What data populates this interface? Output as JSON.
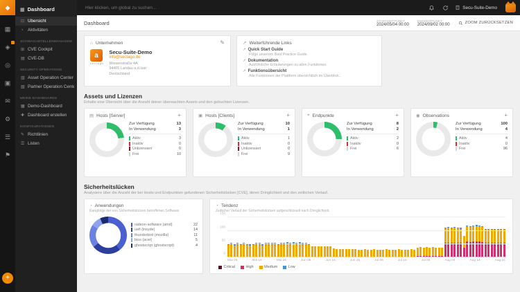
{
  "topbar": {
    "search_placeholder": "Hier klicken, um global zu suchen...",
    "tenant_label": "Secu-Suite-Demo"
  },
  "subheader": {
    "breadcrumb": "Dashboard",
    "start_label": "STARTZEITPUNKT",
    "start_value": "2024/05/04 00:00",
    "end_label": "ENDZEITPUNKT",
    "end_value": "2024/09/02 00:00",
    "zoom_reset_label": "ZOOM ZURÜCKSETZEN"
  },
  "sidebar": {
    "title": "Dashboard",
    "fab_glyph": "+",
    "rail_icons": [
      {
        "name": "dashboard-grid-icon",
        "glyph": "▦",
        "badge": false
      },
      {
        "name": "shield-icon",
        "glyph": "◈",
        "badge": true
      },
      {
        "name": "radar-icon",
        "glyph": "◎",
        "badge": false
      },
      {
        "name": "monitor-icon",
        "glyph": "▣",
        "badge": false
      },
      {
        "name": "mail-icon",
        "glyph": "✉",
        "badge": false
      },
      {
        "name": "settings-icon",
        "glyph": "⚙",
        "badge": false
      },
      {
        "name": "list-icon",
        "glyph": "☰",
        "badge": false
      },
      {
        "name": "flag-icon",
        "glyph": "⚑",
        "badge": false
      }
    ],
    "items_top": [
      {
        "name": "uebersicht",
        "icon_glyph": "⊡",
        "label": "Übersicht",
        "active": true
      },
      {
        "name": "aktivitaeten",
        "icon_glyph": "◔",
        "label": "Aktivitäten",
        "active": false
      }
    ],
    "groups": [
      {
        "heading": "SCHWACHSTELLENMANAGEMENT",
        "items": [
          {
            "name": "cve-cockpit",
            "icon_glyph": "⊞",
            "label": "CVE Cockpit"
          },
          {
            "name": "cve-db",
            "icon_glyph": "▤",
            "label": "CVE-DB"
          }
        ]
      },
      {
        "heading": "SECURITY OPERATIONS",
        "items": [
          {
            "name": "asset-operation-center",
            "icon_glyph": "▥",
            "label": "Asset Operation Center"
          },
          {
            "name": "partner-operation-center",
            "icon_glyph": "▧",
            "label": "Partner Operation Center"
          }
        ]
      },
      {
        "heading": "MEINE DASHBOARDS",
        "items": [
          {
            "name": "demo-dashboard",
            "icon_glyph": "▦",
            "label": "Demo-Dashboard"
          },
          {
            "name": "dashboard-erstellen",
            "icon_glyph": "✚",
            "label": "Dashboard erstellen"
          }
        ]
      },
      {
        "heading": "KONFIGURATIONEN",
        "items": [
          {
            "name": "richtlinien",
            "icon_glyph": "✎",
            "label": "Richtlinien"
          },
          {
            "name": "listen",
            "icon_glyph": "☰",
            "label": "Listen"
          }
        ]
      }
    ]
  },
  "company_card": {
    "header": "Unternehmen",
    "logo_letter": "a",
    "logo_caption": "sectago",
    "name": "Secu-Suite-Demo",
    "email": "info@sectago.de",
    "address_lines": [
      "Wiesenstraße 4A",
      "94405 Landau a.d.Isar",
      "Deutschland"
    ]
  },
  "links_card": {
    "header": "Weiterführende Links",
    "links": [
      {
        "label": "Quick Start Guide",
        "description": "Folge unserem Best Practice Guide."
      },
      {
        "label": "Dokumentation",
        "description": "Ausführliche Erläuterungen zu allen Funktionen."
      },
      {
        "label": "Funktionsübersicht",
        "description": "Alle Funktionen der Plattform übersichtlich im Überblick."
      }
    ]
  },
  "assets_section": {
    "title": "Assets und Lizenzen",
    "subtitle": "Erhalte eine Übersicht über die Anzahl deiner überwachten Assets und den gebuchten Lizenzen.",
    "cards": [
      {
        "title": "Hosts [Server]",
        "icon": "server-icon",
        "icon_glyph": "▤",
        "add_glyph": "+",
        "chart_index": 0,
        "stats": [
          {
            "label": "Zur Verfügung",
            "value": "13"
          },
          {
            "label": "In Verwendung",
            "value": "3"
          }
        ],
        "legend": [
          {
            "label": "Aktiv",
            "value": "3",
            "color": "#2ebd6b"
          },
          {
            "label": "Inaktiv",
            "value": "0",
            "color": "#e02b2b"
          },
          {
            "label": "Unlizensiert",
            "value": "0",
            "color": "#8f1030"
          },
          {
            "label": "Frei",
            "value": "10",
            "color": "#d5d5d5"
          }
        ]
      },
      {
        "title": "Hosts [Clients]",
        "icon": "clients-icon",
        "icon_glyph": "▣",
        "add_glyph": "+",
        "chart_index": 1,
        "stats": [
          {
            "label": "Zur Verfügung",
            "value": "10"
          },
          {
            "label": "In Verwendung",
            "value": "1"
          }
        ],
        "legend": [
          {
            "label": "Aktiv",
            "value": "1",
            "color": "#2ebd6b"
          },
          {
            "label": "Inaktiv",
            "value": "0",
            "color": "#e02b2b"
          },
          {
            "label": "Unlizensiert",
            "value": "0",
            "color": "#8f1030"
          },
          {
            "label": "Frei",
            "value": "9",
            "color": "#d5d5d5"
          }
        ]
      },
      {
        "title": "Endpunkte",
        "icon": "endpoint-icon",
        "icon_glyph": "⌖",
        "add_glyph": "+",
        "chart_index": 2,
        "stats": [
          {
            "label": "Zur Verfügung",
            "value": "8"
          },
          {
            "label": "In Verwendung",
            "value": "2"
          }
        ],
        "legend": [
          {
            "label": "Aktiv",
            "value": "2",
            "color": "#2ebd6b"
          },
          {
            "label": "Inaktiv",
            "value": "0",
            "color": "#e02b2b"
          },
          {
            "label": "Frei",
            "value": "6",
            "color": "#d5d5d5"
          }
        ]
      },
      {
        "title": "Observations",
        "icon": "observations-icon",
        "icon_glyph": "◉",
        "add_glyph": "+",
        "chart_index": 3,
        "stats": [
          {
            "label": "Zur Verfügung",
            "value": "100"
          },
          {
            "label": "In Verwendung",
            "value": "4"
          }
        ],
        "legend": [
          {
            "label": "Aktiv",
            "value": "4",
            "color": "#2ebd6b"
          },
          {
            "label": "Inaktiv",
            "value": "0",
            "color": "#e02b2b"
          },
          {
            "label": "Frei",
            "value": "96",
            "color": "#d5d5d5"
          }
        ]
      }
    ]
  },
  "vuln_section": {
    "title": "Sicherheitslücken",
    "subtitle": "Analysiere über die Anzahl der bei Hosts und Endpunkten gefundenen Sicherheitslücken [CVE], deren Dringlichkeit und den zeitlichen Verlauf.",
    "apps_card": {
      "title": "Anwendungen",
      "icon_glyph": "◔",
      "subtitle": "Rangfolge der von Sicherheitslücken betroffenen Software.",
      "chart_index": 4,
      "legend": [
        {
          "label": "radeon-software (amd)",
          "value": "22",
          "color": "#4a5fd0"
        },
        {
          "label": "uefi (insyde)",
          "value": "14",
          "color": "#2c3e9e"
        },
        {
          "label": "thunderbird (mozilla)",
          "value": "11",
          "color": "#6b82e0"
        },
        {
          "label": "bios (acer)",
          "value": "5",
          "color": "#8fa3ec"
        },
        {
          "label": "ghostscript (ghostscript)",
          "value": "4",
          "color": "#1e2a6e"
        }
      ]
    },
    "trend_card": {
      "title": "Tendenz",
      "icon_glyph": "◔",
      "subtitle": "Zeitlicher Verlauf der Sicherheitslücken aufgeschlüsselt nach Dringlichkeit.",
      "chart_index": 5
    }
  },
  "chart_data": [
    {
      "type": "pie",
      "title": "Hosts [Server] Lizenzen",
      "labels": [
        "In Verwendung",
        "Frei"
      ],
      "values": [
        3,
        10
      ],
      "colors": [
        "#2ebd6b",
        "#e9e9e9"
      ]
    },
    {
      "type": "pie",
      "title": "Hosts [Clients] Lizenzen",
      "labels": [
        "In Verwendung",
        "Frei"
      ],
      "values": [
        1,
        9
      ],
      "colors": [
        "#2ebd6b",
        "#e9e9e9"
      ]
    },
    {
      "type": "pie",
      "title": "Endpunkte Lizenzen",
      "labels": [
        "In Verwendung",
        "Frei"
      ],
      "values": [
        2,
        6
      ],
      "colors": [
        "#2ebd6b",
        "#e9e9e9"
      ]
    },
    {
      "type": "pie",
      "title": "Observations Lizenzen",
      "labels": [
        "In Verwendung",
        "Frei"
      ],
      "values": [
        4,
        96
      ],
      "colors": [
        "#2ebd6b",
        "#e9e9e9"
      ]
    },
    {
      "type": "pie",
      "title": "Anwendungen",
      "labels": [
        "radeon-software (amd)",
        "uefi (insyde)",
        "thunderbird (mozilla)",
        "bios (acer)",
        "ghostscript (ghostscript)"
      ],
      "values": [
        22,
        14,
        11,
        5,
        4
      ],
      "colors": [
        "#4a5fd0",
        "#2c3e9e",
        "#6b82e0",
        "#8fa3ec",
        "#1e2a6e"
      ]
    },
    {
      "type": "bar",
      "stacked": true,
      "title": "Tendenz",
      "ylim": [
        0,
        150
      ],
      "yticks": [
        0,
        50,
        100,
        150
      ],
      "xticklabels": [
        "Mai 06",
        "Mai 16",
        "Mai 26",
        "Jun 05",
        "Jun 15",
        "Jun 25",
        "Jul 05",
        "Jul 15",
        "Jul 25",
        "Aug 04",
        "Aug 14",
        "Aug 24"
      ],
      "series": [
        {
          "name": "Critical",
          "color": "#5a1030",
          "values": [
            0,
            0,
            0,
            0,
            0,
            0,
            0,
            0,
            0,
            0,
            0,
            0,
            0,
            0,
            0,
            0,
            0,
            0,
            0,
            0,
            0,
            0,
            0,
            0,
            0,
            0,
            0,
            0,
            0,
            0,
            0,
            0,
            0,
            0,
            0,
            0,
            0,
            0,
            0,
            0,
            0,
            0,
            0,
            0,
            0,
            0,
            0,
            0,
            0,
            0,
            0,
            0,
            0,
            0,
            0,
            0,
            0,
            0,
            0,
            0,
            0,
            2,
            2,
            2,
            2,
            2,
            2,
            2,
            2,
            2,
            3,
            3,
            3,
            3,
            3,
            3,
            2,
            3,
            3,
            3,
            3,
            3,
            3,
            3,
            3,
            3,
            3,
            3,
            3,
            3
          ]
        },
        {
          "name": "High",
          "color": "#d62d6e",
          "values": [
            2,
            2,
            2,
            2,
            2,
            2,
            2,
            2,
            2,
            2,
            2,
            2,
            2,
            2,
            2,
            2,
            2,
            2,
            2,
            2,
            2,
            2,
            2,
            2,
            2,
            2,
            2,
            2,
            2,
            2,
            2,
            2,
            2,
            2,
            2,
            2,
            2,
            2,
            2,
            2,
            2,
            3,
            3,
            3,
            3,
            3,
            3,
            3,
            3,
            3,
            3,
            3,
            3,
            3,
            3,
            3,
            3,
            3,
            3,
            3,
            3,
            5,
            5,
            5,
            5,
            5,
            5,
            5,
            5,
            5,
            52,
            53,
            52,
            53,
            52,
            51,
            35,
            56,
            55,
            56,
            57,
            56,
            55,
            52,
            51,
            52,
            53,
            52,
            51,
            52
          ]
        },
        {
          "name": "Medium",
          "color": "#f2a800",
          "values": [
            44,
            45,
            43,
            46,
            44,
            45,
            44,
            43,
            45,
            46,
            44,
            43,
            45,
            44,
            46,
            45,
            44,
            46,
            45,
            47,
            46,
            47,
            46,
            47,
            46,
            45,
            44,
            40,
            40,
            39,
            40,
            40,
            39,
            40,
            32,
            31,
            31,
            30,
            31,
            31,
            30,
            28,
            27,
            27,
            28,
            26,
            27,
            28,
            27,
            26,
            27,
            28,
            27,
            27,
            26,
            28,
            27,
            26,
            27,
            28,
            27,
            31,
            32,
            31,
            32,
            31,
            32,
            29,
            30,
            29,
            55,
            56,
            55,
            56,
            55,
            54,
            45,
            57,
            56,
            57,
            58,
            57,
            56,
            50,
            51,
            50,
            49,
            50,
            51,
            50
          ]
        },
        {
          "name": "Low",
          "color": "#4a90d2",
          "values": [
            7,
            8,
            7,
            6,
            7,
            8,
            7,
            7,
            6,
            7,
            8,
            7,
            7,
            8,
            6,
            7,
            7,
            8,
            7,
            8,
            8,
            9,
            8,
            9,
            8,
            8,
            7,
            0,
            0,
            0,
            0,
            0,
            0,
            0,
            0,
            0,
            0,
            0,
            0,
            0,
            0,
            0,
            0,
            0,
            0,
            0,
            0,
            0,
            0,
            0,
            0,
            0,
            0,
            0,
            0,
            0,
            0,
            0,
            0,
            0,
            0,
            0,
            0,
            0,
            0,
            0,
            0,
            0,
            0,
            0,
            3,
            3,
            3,
            3,
            3,
            3,
            0,
            3,
            3,
            3,
            3,
            3,
            3,
            2,
            2,
            2,
            2,
            2,
            2,
            2
          ]
        }
      ]
    }
  ]
}
